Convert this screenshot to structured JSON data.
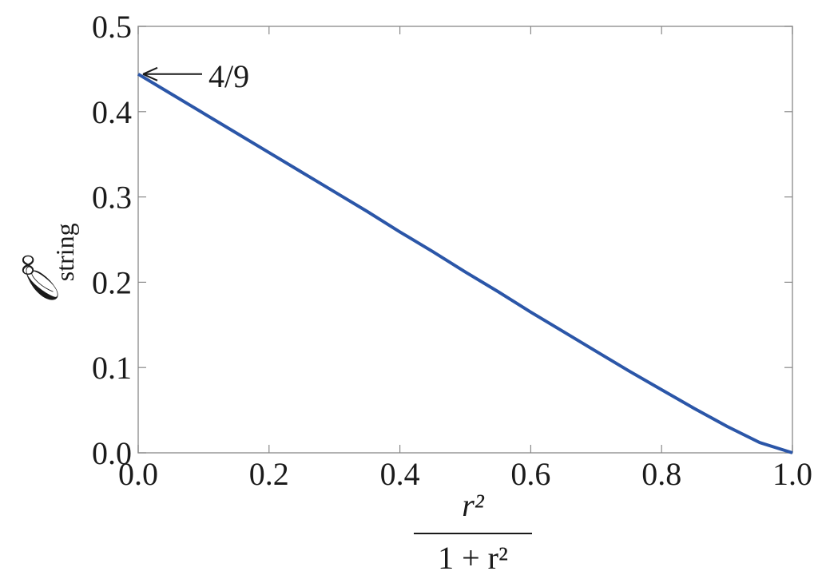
{
  "chart_data": {
    "type": "line",
    "ylabel": {
      "main": "𝒪",
      "sup": "∞",
      "sub": "string"
    },
    "xlabel": {
      "numerator": "r²",
      "denominator": "1 + r²"
    },
    "x": [
      0,
      0.05,
      0.1,
      0.15,
      0.2,
      0.25,
      0.3,
      0.35,
      0.4,
      0.45,
      0.5,
      0.55,
      0.6,
      0.65,
      0.7,
      0.75,
      0.8,
      0.85,
      0.9,
      0.95,
      1
    ],
    "series": [
      {
        "color": "#2b56a8",
        "values": [
          0.444,
          0.421,
          0.398,
          0.375,
          0.352,
          0.329,
          0.306,
          0.283,
          0.259,
          0.236,
          0.212,
          0.189,
          0.165,
          0.142,
          0.119,
          0.096,
          0.074,
          0.052,
          0.031,
          0.012,
          0
        ]
      }
    ],
    "annotation": {
      "text": "4/9",
      "x": 0,
      "y": 0.444
    },
    "xlim": [
      0,
      1
    ],
    "ylim": [
      0,
      0.5
    ],
    "xticks": [
      {
        "value": 0,
        "label": "0.0"
      },
      0.2,
      0.4,
      0.6,
      0.8,
      {
        "value": 1,
        "label": "1.0"
      }
    ],
    "yticks": [
      {
        "value": 0,
        "label": "0.0"
      },
      0.1,
      0.2,
      0.3,
      0.4,
      0.5
    ]
  }
}
